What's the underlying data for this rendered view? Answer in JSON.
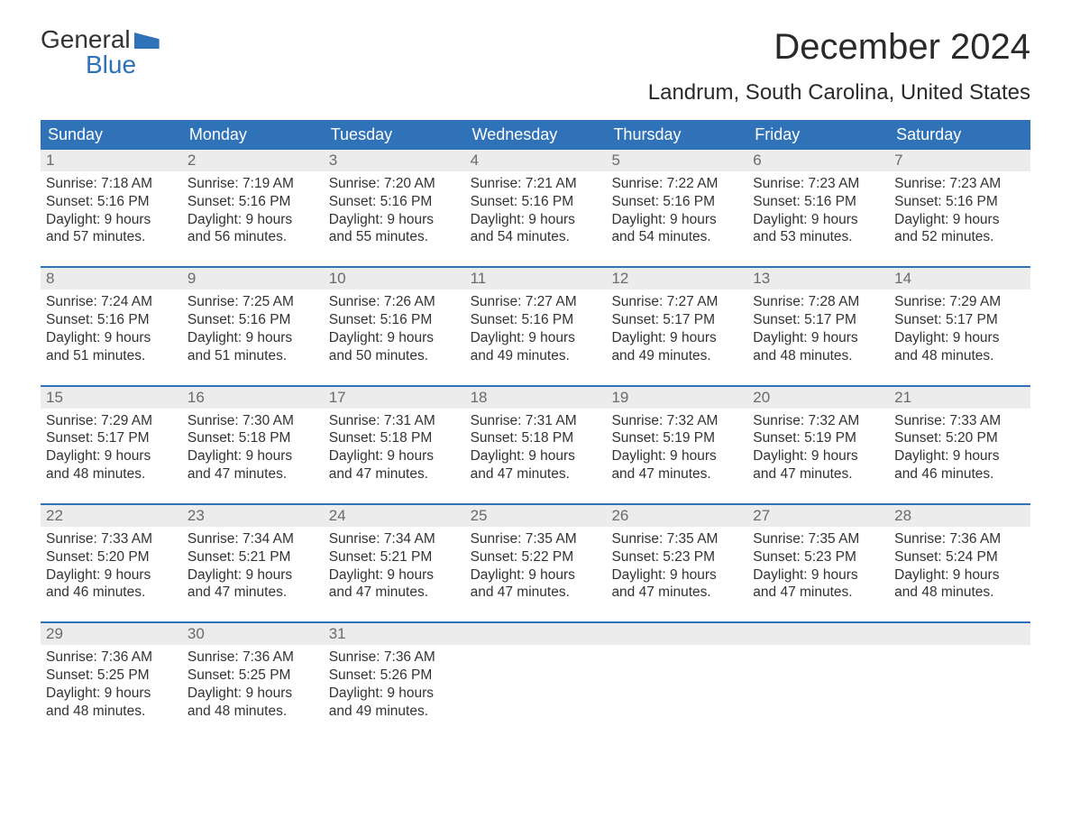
{
  "logo": {
    "top": "General",
    "bottom": "Blue"
  },
  "title": "December 2024",
  "location": "Landrum, South Carolina, United States",
  "colors": {
    "header_bg": "#2f72b8",
    "header_text": "#ffffff",
    "daynum_bg": "#ececec",
    "daynum_text": "#6a6a6a",
    "body_text": "#333333",
    "week_border": "#2f72b8",
    "page_bg": "#ffffff"
  },
  "typography": {
    "title_fontsize": 40,
    "location_fontsize": 24,
    "weekday_fontsize": 18,
    "daynum_fontsize": 17,
    "body_fontsize": 15.5
  },
  "weekdays": [
    "Sunday",
    "Monday",
    "Tuesday",
    "Wednesday",
    "Thursday",
    "Friday",
    "Saturday"
  ],
  "labels": {
    "sunrise": "Sunrise:",
    "sunset": "Sunset:",
    "daylight": "Daylight:"
  },
  "weeks": [
    [
      {
        "n": "1",
        "sunrise": "7:18 AM",
        "sunset": "5:16 PM",
        "dl1": "9 hours",
        "dl2": "and 57 minutes."
      },
      {
        "n": "2",
        "sunrise": "7:19 AM",
        "sunset": "5:16 PM",
        "dl1": "9 hours",
        "dl2": "and 56 minutes."
      },
      {
        "n": "3",
        "sunrise": "7:20 AM",
        "sunset": "5:16 PM",
        "dl1": "9 hours",
        "dl2": "and 55 minutes."
      },
      {
        "n": "4",
        "sunrise": "7:21 AM",
        "sunset": "5:16 PM",
        "dl1": "9 hours",
        "dl2": "and 54 minutes."
      },
      {
        "n": "5",
        "sunrise": "7:22 AM",
        "sunset": "5:16 PM",
        "dl1": "9 hours",
        "dl2": "and 54 minutes."
      },
      {
        "n": "6",
        "sunrise": "7:23 AM",
        "sunset": "5:16 PM",
        "dl1": "9 hours",
        "dl2": "and 53 minutes."
      },
      {
        "n": "7",
        "sunrise": "7:23 AM",
        "sunset": "5:16 PM",
        "dl1": "9 hours",
        "dl2": "and 52 minutes."
      }
    ],
    [
      {
        "n": "8",
        "sunrise": "7:24 AM",
        "sunset": "5:16 PM",
        "dl1": "9 hours",
        "dl2": "and 51 minutes."
      },
      {
        "n": "9",
        "sunrise": "7:25 AM",
        "sunset": "5:16 PM",
        "dl1": "9 hours",
        "dl2": "and 51 minutes."
      },
      {
        "n": "10",
        "sunrise": "7:26 AM",
        "sunset": "5:16 PM",
        "dl1": "9 hours",
        "dl2": "and 50 minutes."
      },
      {
        "n": "11",
        "sunrise": "7:27 AM",
        "sunset": "5:16 PM",
        "dl1": "9 hours",
        "dl2": "and 49 minutes."
      },
      {
        "n": "12",
        "sunrise": "7:27 AM",
        "sunset": "5:17 PM",
        "dl1": "9 hours",
        "dl2": "and 49 minutes."
      },
      {
        "n": "13",
        "sunrise": "7:28 AM",
        "sunset": "5:17 PM",
        "dl1": "9 hours",
        "dl2": "and 48 minutes."
      },
      {
        "n": "14",
        "sunrise": "7:29 AM",
        "sunset": "5:17 PM",
        "dl1": "9 hours",
        "dl2": "and 48 minutes."
      }
    ],
    [
      {
        "n": "15",
        "sunrise": "7:29 AM",
        "sunset": "5:17 PM",
        "dl1": "9 hours",
        "dl2": "and 48 minutes."
      },
      {
        "n": "16",
        "sunrise": "7:30 AM",
        "sunset": "5:18 PM",
        "dl1": "9 hours",
        "dl2": "and 47 minutes."
      },
      {
        "n": "17",
        "sunrise": "7:31 AM",
        "sunset": "5:18 PM",
        "dl1": "9 hours",
        "dl2": "and 47 minutes."
      },
      {
        "n": "18",
        "sunrise": "7:31 AM",
        "sunset": "5:18 PM",
        "dl1": "9 hours",
        "dl2": "and 47 minutes."
      },
      {
        "n": "19",
        "sunrise": "7:32 AM",
        "sunset": "5:19 PM",
        "dl1": "9 hours",
        "dl2": "and 47 minutes."
      },
      {
        "n": "20",
        "sunrise": "7:32 AM",
        "sunset": "5:19 PM",
        "dl1": "9 hours",
        "dl2": "and 47 minutes."
      },
      {
        "n": "21",
        "sunrise": "7:33 AM",
        "sunset": "5:20 PM",
        "dl1": "9 hours",
        "dl2": "and 46 minutes."
      }
    ],
    [
      {
        "n": "22",
        "sunrise": "7:33 AM",
        "sunset": "5:20 PM",
        "dl1": "9 hours",
        "dl2": "and 46 minutes."
      },
      {
        "n": "23",
        "sunrise": "7:34 AM",
        "sunset": "5:21 PM",
        "dl1": "9 hours",
        "dl2": "and 47 minutes."
      },
      {
        "n": "24",
        "sunrise": "7:34 AM",
        "sunset": "5:21 PM",
        "dl1": "9 hours",
        "dl2": "and 47 minutes."
      },
      {
        "n": "25",
        "sunrise": "7:35 AM",
        "sunset": "5:22 PM",
        "dl1": "9 hours",
        "dl2": "and 47 minutes."
      },
      {
        "n": "26",
        "sunrise": "7:35 AM",
        "sunset": "5:23 PM",
        "dl1": "9 hours",
        "dl2": "and 47 minutes."
      },
      {
        "n": "27",
        "sunrise": "7:35 AM",
        "sunset": "5:23 PM",
        "dl1": "9 hours",
        "dl2": "and 47 minutes."
      },
      {
        "n": "28",
        "sunrise": "7:36 AM",
        "sunset": "5:24 PM",
        "dl1": "9 hours",
        "dl2": "and 48 minutes."
      }
    ],
    [
      {
        "n": "29",
        "sunrise": "7:36 AM",
        "sunset": "5:25 PM",
        "dl1": "9 hours",
        "dl2": "and 48 minutes."
      },
      {
        "n": "30",
        "sunrise": "7:36 AM",
        "sunset": "5:25 PM",
        "dl1": "9 hours",
        "dl2": "and 48 minutes."
      },
      {
        "n": "31",
        "sunrise": "7:36 AM",
        "sunset": "5:26 PM",
        "dl1": "9 hours",
        "dl2": "and 49 minutes."
      },
      null,
      null,
      null,
      null
    ]
  ]
}
